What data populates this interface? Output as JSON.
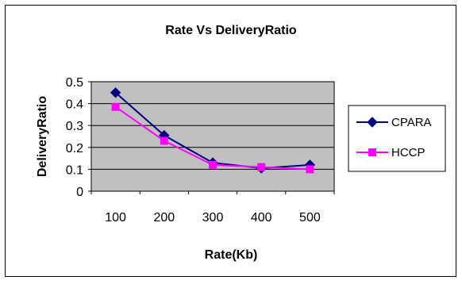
{
  "chart_data": {
    "type": "line",
    "title": "Rate Vs DeliveryRatio",
    "xlabel": "Rate(Kb)",
    "ylabel": "DeliveryRatio",
    "categories": [
      "100",
      "200",
      "300",
      "400",
      "500"
    ],
    "ylim": [
      0,
      0.5
    ],
    "yticks": [
      "0",
      "0.1",
      "0.2",
      "0.3",
      "0.4",
      "0.5"
    ],
    "grid": true,
    "legend_position": "right",
    "plot_background": "#c0c0c0",
    "series": [
      {
        "name": "CPARA",
        "values": [
          0.45,
          0.255,
          0.13,
          0.105,
          0.12
        ],
        "color": "#000080",
        "marker": "diamond"
      },
      {
        "name": "HCCP",
        "values": [
          0.385,
          0.23,
          0.12,
          0.11,
          0.1
        ],
        "color": "#ff00ff",
        "marker": "square"
      }
    ]
  }
}
